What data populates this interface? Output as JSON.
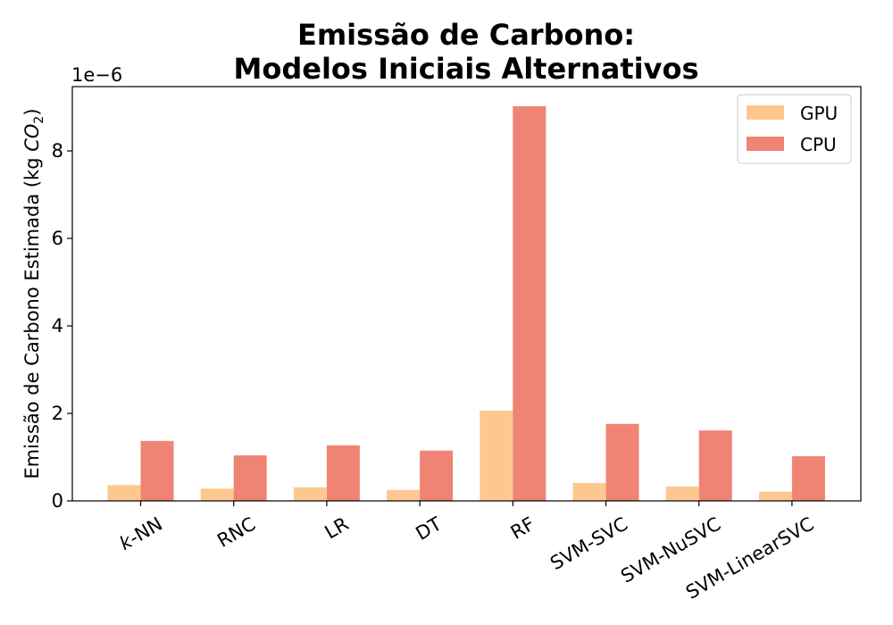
{
  "chart_data": {
    "type": "bar",
    "title_lines": [
      "Emissão de Carbono:",
      "Modelos Iniciais Alternativos"
    ],
    "ylabel_main": "Emissão de Carbono Estimada (kg ",
    "ylabel_sub_base": "CO",
    "ylabel_sub_index": "2",
    "ylabel_close": ")",
    "y_offset_label": "1e−6",
    "categories": [
      "k-NN",
      "RNC",
      "LR",
      "DT",
      "RF",
      "SVM-SVC",
      "SVM-NuSVC",
      "SVM-LinearSVC"
    ],
    "series": [
      {
        "name": "GPU",
        "color": "#fdc890",
        "values": [
          0.36,
          0.28,
          0.31,
          0.25,
          2.06,
          0.41,
          0.33,
          0.21
        ]
      },
      {
        "name": "CPU",
        "color": "#f08474",
        "values": [
          1.37,
          1.04,
          1.27,
          1.15,
          9.02,
          1.76,
          1.61,
          1.02
        ]
      }
    ],
    "yticks": [
      0,
      2,
      4,
      6,
      8
    ],
    "ylim": [
      0,
      9.47
    ],
    "grid": false,
    "legend_position": "top-right"
  }
}
